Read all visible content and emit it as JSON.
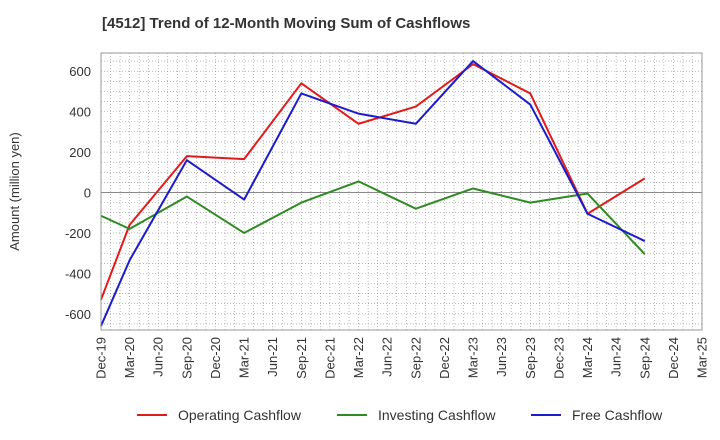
{
  "chart_data": {
    "type": "line",
    "title": "[4512]  Trend of 12-Month Moving Sum of Cashflows",
    "xlabel": "",
    "ylabel": "Amount (million yen)",
    "ylim": [
      -680,
      690
    ],
    "yticks": [
      -600,
      -400,
      -200,
      0,
      200,
      400,
      600
    ],
    "grid": true,
    "legend_position": "bottom",
    "x": [
      "Dec-19",
      "Mar-20",
      "Jun-20",
      "Sep-20",
      "Dec-20",
      "Mar-21",
      "Jun-21",
      "Sep-21",
      "Dec-21",
      "Mar-22",
      "Jun-22",
      "Sep-22",
      "Dec-22",
      "Mar-23",
      "Jun-23",
      "Sep-23",
      "Dec-23",
      "Mar-24",
      "Jun-24",
      "Sep-24",
      "Dec-24",
      "Mar-25"
    ],
    "series": [
      {
        "name": "Operating Cashflow",
        "color": "#e31a1c",
        "values": [
          -530,
          -160,
          null,
          180,
          null,
          165,
          null,
          540,
          null,
          340,
          null,
          425,
          null,
          635,
          null,
          490,
          null,
          -105,
          null,
          70,
          null,
          null
        ]
      },
      {
        "name": "Investing Cashflow",
        "color": "#2e8b22",
        "values": [
          -115,
          -180,
          null,
          -20,
          null,
          -200,
          null,
          -50,
          null,
          55,
          null,
          -80,
          null,
          20,
          null,
          -50,
          null,
          -5,
          null,
          -305,
          null,
          null
        ]
      },
      {
        "name": "Free Cashflow",
        "color": "#1c1ccc",
        "values": [
          -660,
          -335,
          null,
          160,
          null,
          -35,
          null,
          490,
          null,
          390,
          null,
          340,
          null,
          650,
          null,
          435,
          null,
          -105,
          null,
          -240,
          null,
          null
        ]
      }
    ]
  }
}
